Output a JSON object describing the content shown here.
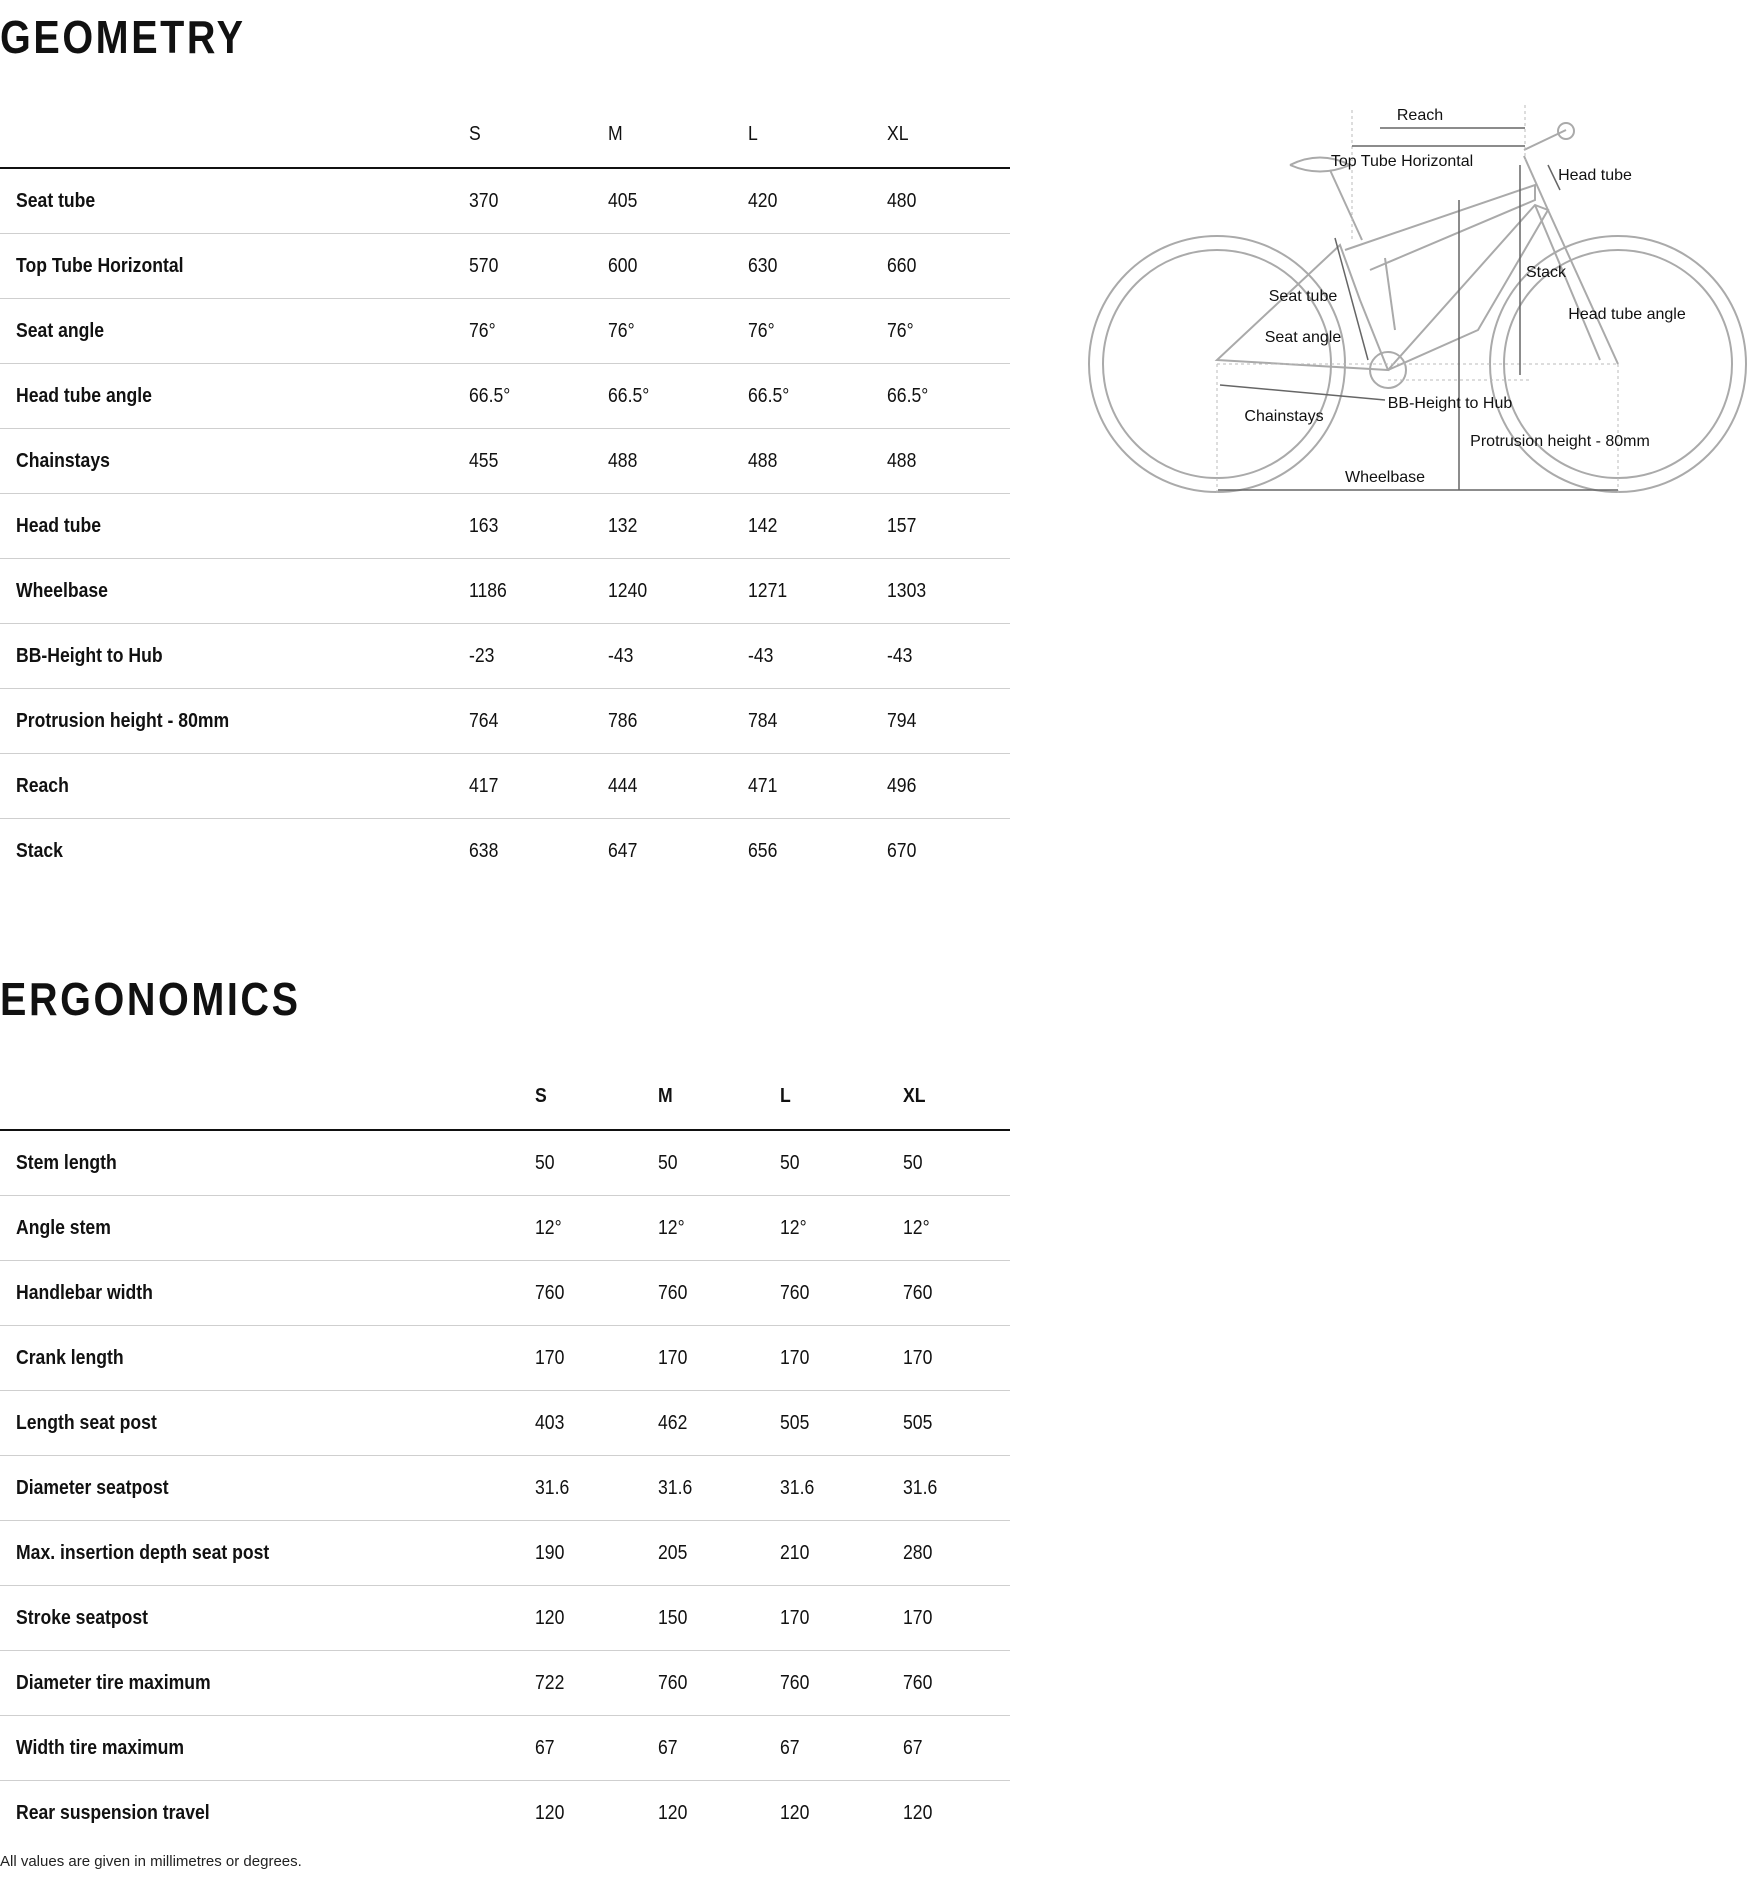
{
  "geometry": {
    "title": "GEOMETRY",
    "columns": [
      "",
      "S",
      "M",
      "L",
      "XL"
    ],
    "rows": [
      {
        "label": "Seat tube",
        "values": [
          "370",
          "405",
          "420",
          "480"
        ]
      },
      {
        "label": "Top Tube Horizontal",
        "values": [
          "570",
          "600",
          "630",
          "660"
        ]
      },
      {
        "label": "Seat angle",
        "values": [
          "76°",
          "76°",
          "76°",
          "76°"
        ]
      },
      {
        "label": "Head tube angle",
        "values": [
          "66.5°",
          "66.5°",
          "66.5°",
          "66.5°"
        ]
      },
      {
        "label": "Chainstays",
        "values": [
          "455",
          "488",
          "488",
          "488"
        ]
      },
      {
        "label": "Head tube",
        "values": [
          "163",
          "132",
          "142",
          "157"
        ]
      },
      {
        "label": "Wheelbase",
        "values": [
          "1186",
          "1240",
          "1271",
          "1303"
        ]
      },
      {
        "label": "BB-Height to Hub",
        "values": [
          "-23",
          "-43",
          "-43",
          "-43"
        ]
      },
      {
        "label": "Protrusion height - 80mm",
        "values": [
          "764",
          "786",
          "784",
          "794"
        ]
      },
      {
        "label": "Reach",
        "values": [
          "417",
          "444",
          "471",
          "496"
        ]
      },
      {
        "label": "Stack",
        "values": [
          "638",
          "647",
          "656",
          "670"
        ]
      }
    ]
  },
  "diagram": {
    "labels": {
      "reach": "Reach",
      "top_tube": "Top Tube Horizontal",
      "head_tube": "Head tube",
      "stack": "Stack",
      "seat_tube": "Seat tube",
      "head_tube_angle": "Head tube angle",
      "seat_angle": "Seat angle",
      "bb_height": "BB-Height to Hub",
      "chainstays": "Chainstays",
      "protrusion": "Protrusion height - 80mm",
      "wheelbase": "Wheelbase"
    }
  },
  "ergonomics": {
    "title": "ERGONOMICS",
    "columns": [
      "",
      "S",
      "M",
      "L",
      "XL"
    ],
    "rows": [
      {
        "label": "Stem length",
        "values": [
          "50",
          "50",
          "50",
          "50"
        ]
      },
      {
        "label": "Angle stem",
        "values": [
          "12°",
          "12°",
          "12°",
          "12°"
        ]
      },
      {
        "label": "Handlebar width",
        "values": [
          "760",
          "760",
          "760",
          "760"
        ]
      },
      {
        "label": "Crank length",
        "values": [
          "170",
          "170",
          "170",
          "170"
        ]
      },
      {
        "label": "Length seat post",
        "values": [
          "403",
          "462",
          "505",
          "505"
        ]
      },
      {
        "label": "Diameter seatpost",
        "values": [
          "31.6",
          "31.6",
          "31.6",
          "31.6"
        ]
      },
      {
        "label": "Max. insertion depth seat post",
        "values": [
          "190",
          "205",
          "210",
          "280"
        ]
      },
      {
        "label": "Stroke seatpost",
        "values": [
          "120",
          "150",
          "170",
          "170"
        ]
      },
      {
        "label": "Diameter tire maximum",
        "values": [
          "722",
          "760",
          "760",
          "760"
        ]
      },
      {
        "label": "Width tire maximum",
        "values": [
          "67",
          "67",
          "67",
          "67"
        ]
      },
      {
        "label": "Rear suspension travel",
        "values": [
          "120",
          "120",
          "120",
          "120"
        ]
      }
    ]
  },
  "footer": "All values are given in millimetres or degrees."
}
